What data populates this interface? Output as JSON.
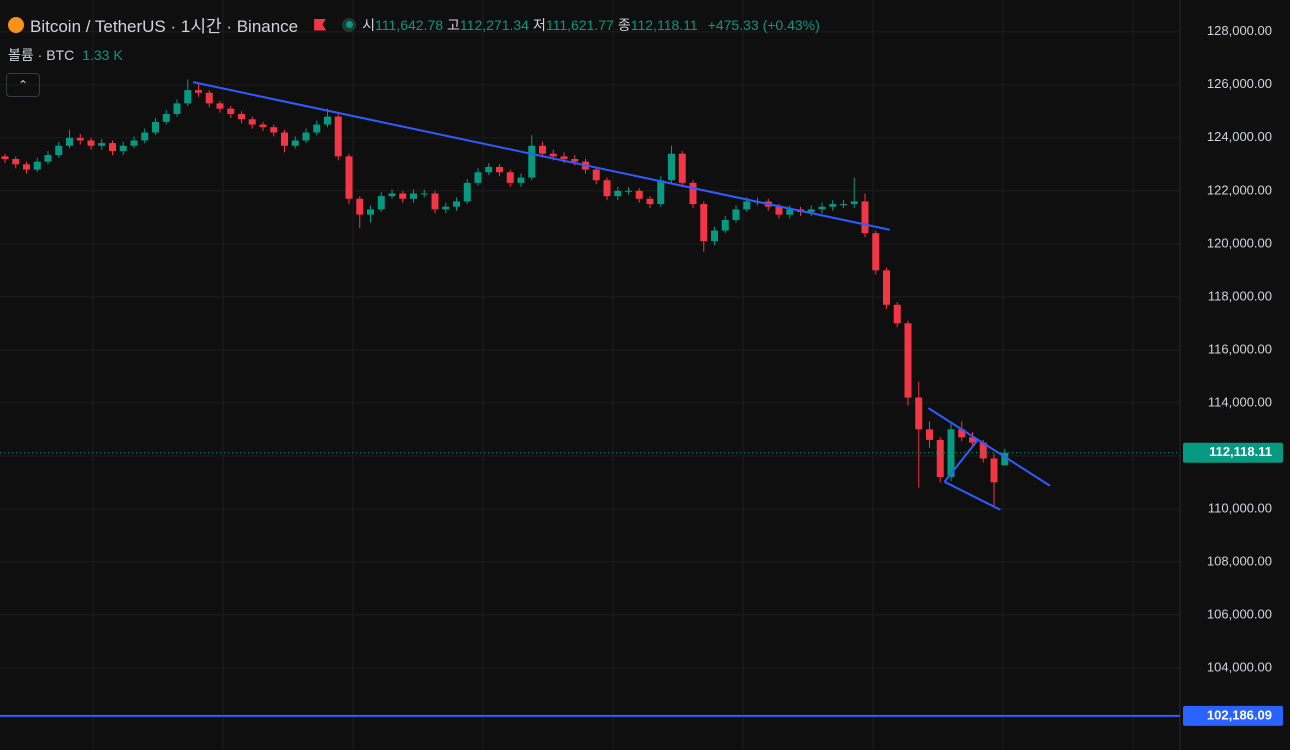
{
  "chart_data": {
    "type": "candlestick",
    "title": "Bitcoin / TetherUS · 1시간 · Binance",
    "ohlc_legend": {
      "labels": [
        "시",
        "고",
        "저",
        "종"
      ],
      "values": [
        {
          "value": 111642.78,
          "label": "111,642.78"
        },
        {
          "value": 112271.34,
          "label": "112,271.34"
        },
        {
          "value": 111621.77,
          "label": "111,621.77"
        },
        {
          "value": 112118.11,
          "label": "112,118.11"
        }
      ]
    },
    "change": "+475.33 (+0.43%)",
    "volume_label": "볼륨 · BTC",
    "volume_value": "1.33 K",
    "up_color": "#089981",
    "down_color": "#f23645",
    "ylim": [
      100900,
      129200
    ],
    "yticks": [
      {
        "value": 104000,
        "label": "104,000.00"
      },
      {
        "value": 106000,
        "label": "106,000.00"
      },
      {
        "value": 108000,
        "label": "108,000.00"
      },
      {
        "value": 110000,
        "label": "110,000.00"
      },
      {
        "value": 112000,
        "label": "112,000.00"
      },
      {
        "value": 114000,
        "label": "114,000.00"
      },
      {
        "value": 116000,
        "label": "116,000.00"
      },
      {
        "value": 118000,
        "label": "118,000.00"
      },
      {
        "value": 120000,
        "label": "120,000.00"
      },
      {
        "value": 122000,
        "label": "122,000.00"
      },
      {
        "value": 124000,
        "label": "124,000.00"
      },
      {
        "value": 126000,
        "label": "126,000.00"
      },
      {
        "value": 128000,
        "label": "128,000.00"
      }
    ],
    "grid": true,
    "last_price": {
      "value": 112118.11,
      "label": "112,118.11",
      "color": "#089981"
    },
    "horizontal_line": {
      "value": 102186.09,
      "label": "102,186.09",
      "color": "#2962ff"
    },
    "drawings": {
      "color": "#2f5cff",
      "lines": [
        [
          {
            "i": 17.5,
            "price": 126100
          },
          {
            "i": 82.3,
            "price": 120530
          }
        ],
        [
          {
            "i": 85.9,
            "price": 113800
          },
          {
            "i": 97.2,
            "price": 110870
          }
        ],
        [
          {
            "i": 87.4,
            "price": 111020
          },
          {
            "i": 92.6,
            "price": 109960
          }
        ],
        [
          {
            "i": 87.4,
            "price": 111020
          },
          {
            "i": 90.5,
            "price": 112600
          }
        ]
      ]
    },
    "open": [
      123300,
      123200,
      123000,
      122800,
      123100,
      123350,
      123700,
      124000,
      123900,
      123700,
      123800,
      123500,
      123700,
      123900,
      124200,
      124600,
      124900,
      125300,
      125800,
      125700,
      125300,
      125100,
      124900,
      124700,
      124500,
      124400,
      124200,
      123700,
      123900,
      124200,
      124500,
      124800,
      123300,
      121700,
      121100,
      121300,
      121800,
      121900,
      121700,
      121900,
      121900,
      121300,
      121400,
      121600,
      122300,
      122700,
      122900,
      122700,
      122300,
      122500,
      123700,
      123400,
      123300,
      123200,
      123100,
      122800,
      122400,
      121800,
      122000,
      122000,
      121700,
      121500,
      122400,
      123400,
      122300,
      121500,
      120100,
      120500,
      120900,
      121300,
      121600,
      121600,
      121400,
      121100,
      121300,
      121200,
      121300,
      121400,
      121500,
      121500,
      121600,
      120400,
      119000,
      117700,
      117000,
      114200,
      113000,
      112600,
      111200,
      113000,
      112700,
      112500,
      111900,
      111642.78
    ],
    "high": [
      123400,
      123300,
      123100,
      123250,
      123500,
      123850,
      124300,
      124150,
      124000,
      123950,
      123900,
      123850,
      124050,
      124350,
      124750,
      125050,
      125450,
      126200,
      126050,
      125800,
      125400,
      125200,
      125000,
      124800,
      124600,
      124500,
      124300,
      124050,
      124350,
      124650,
      125100,
      124900,
      123400,
      121800,
      121450,
      121950,
      122050,
      122000,
      122050,
      122050,
      122000,
      121550,
      121750,
      122450,
      122850,
      123050,
      123000,
      122800,
      122650,
      124100,
      123850,
      123550,
      123450,
      123350,
      123200,
      122900,
      122500,
      122150,
      122150,
      122100,
      121800,
      122550,
      123700,
      123500,
      122400,
      121600,
      120650,
      121050,
      121450,
      121750,
      121750,
      121700,
      121500,
      121450,
      121400,
      121450,
      121550,
      121650,
      121650,
      122500,
      121900,
      120500,
      119100,
      117800,
      117100,
      114800,
      113300,
      112700,
      113200,
      113300,
      112900,
      112600,
      112100,
      112271.34
    ],
    "low": [
      123050,
      122850,
      122650,
      122700,
      123000,
      123250,
      123600,
      123750,
      123550,
      123550,
      123350,
      123350,
      123600,
      123800,
      124100,
      124500,
      124800,
      125200,
      125550,
      125150,
      124950,
      124750,
      124550,
      124350,
      124250,
      124050,
      123450,
      123600,
      123800,
      124100,
      124400,
      123150,
      121500,
      120600,
      120800,
      121200,
      121700,
      121550,
      121550,
      121750,
      121150,
      121150,
      121250,
      121500,
      122200,
      122600,
      122550,
      122150,
      122150,
      122400,
      123250,
      123150,
      123050,
      122950,
      122650,
      122250,
      121650,
      121650,
      121850,
      121550,
      121350,
      121400,
      122300,
      122150,
      121350,
      119700,
      119950,
      120400,
      120800,
      121200,
      121450,
      121250,
      120950,
      120950,
      121050,
      121050,
      121150,
      121250,
      121350,
      121350,
      120250,
      118850,
      117550,
      116850,
      113900,
      110800,
      112300,
      111000,
      111050,
      112550,
      112350,
      111750,
      110100,
      111621.77
    ],
    "close": [
      123200,
      123000,
      122800,
      123100,
      123350,
      123700,
      124000,
      123900,
      123700,
      123800,
      123500,
      123700,
      123900,
      124200,
      124600,
      124900,
      125300,
      125800,
      125700,
      125300,
      125100,
      124900,
      124700,
      124500,
      124400,
      124200,
      123700,
      123900,
      124200,
      124500,
      124800,
      123300,
      121700,
      121100,
      121300,
      121800,
      121900,
      121700,
      121900,
      121900,
      121300,
      121400,
      121600,
      122300,
      122700,
      122900,
      122700,
      122300,
      122500,
      123700,
      123400,
      123300,
      123200,
      123100,
      122800,
      122400,
      121800,
      122000,
      122000,
      121700,
      121500,
      122400,
      123400,
      122300,
      121500,
      120100,
      120500,
      120900,
      121300,
      121600,
      121600,
      121400,
      121100,
      121300,
      121200,
      121300,
      121400,
      121500,
      121500,
      121600,
      120400,
      119000,
      117700,
      117000,
      114200,
      113000,
      112600,
      111200,
      113000,
      112700,
      112500,
      111900,
      111000,
      112118.11
    ]
  }
}
